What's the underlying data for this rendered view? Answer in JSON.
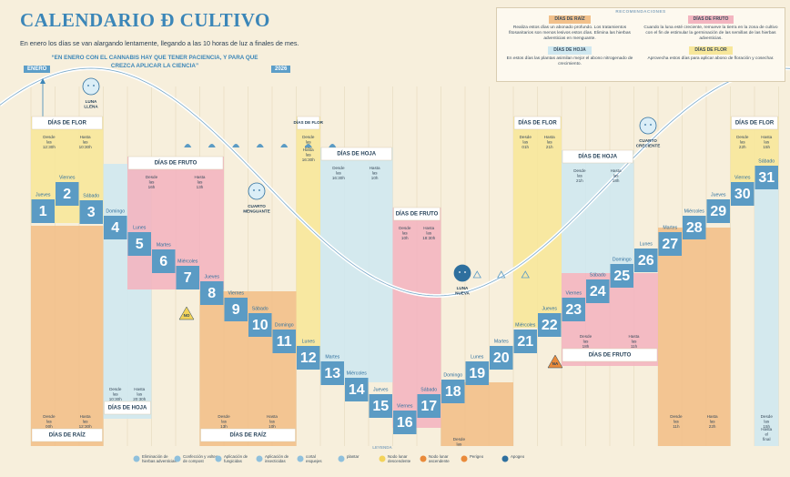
{
  "header": {
    "title": "CALENDARIO Ð CULTIVO",
    "subtitle": "En enero los días se van alargando lentamente, llegando a las 10 horas de luz a finales de mes.",
    "quote": "“EN ENERO CON EL CANNABIS HAY QUE TENER PACIENCIA, Y PARA QUE CREZCA APLICAR LA CIENCIA”",
    "month": "ENERO",
    "year": "2026"
  },
  "recommendations": {
    "title": "RECOMENDACIONES",
    "items": [
      {
        "label": "DÍAS DE RAÍZ",
        "text": "Realiza estos días un abonado profundo. Los tratamientos fitosanitarios son menos lesivos estos días. Elimina las hierbas adventicias en menguante."
      },
      {
        "label": "DÍAS DE FRUTO",
        "text": "Cuando la luna esté creciente, remueve la tierra en la zona de cultivo con el fin de estimular la germinación de las semillas de las hierbas adventicias."
      },
      {
        "label": "DÍAS DE HOJA",
        "text": "En estos días las plantas asimilan mejor el abono nitrogenado de crecimiento."
      },
      {
        "label": "DÍAS DE FLOR",
        "text": "Aprovecha estos días para aplicar abono de floración y cosechar."
      }
    ]
  },
  "days": [
    {
      "number": 1,
      "weekday": "Jueves"
    },
    {
      "number": 2,
      "weekday": "Viernes"
    },
    {
      "number": 3,
      "weekday": "Sábado"
    },
    {
      "number": 4,
      "weekday": "Domingo"
    },
    {
      "number": 5,
      "weekday": "Lunes"
    },
    {
      "number": 6,
      "weekday": "Martes"
    },
    {
      "number": 7,
      "weekday": "Miércoles"
    },
    {
      "number": 8,
      "weekday": "Jueves"
    },
    {
      "number": 9,
      "weekday": "Viernes"
    },
    {
      "number": 10,
      "weekday": "Sábado"
    },
    {
      "number": 11,
      "weekday": "Domingo"
    },
    {
      "number": 12,
      "weekday": "Lunes"
    },
    {
      "number": 13,
      "weekday": "Martes"
    },
    {
      "number": 14,
      "weekday": "Miércoles"
    },
    {
      "number": 15,
      "weekday": "Jueves"
    },
    {
      "number": 16,
      "weekday": "Viernes"
    },
    {
      "number": 17,
      "weekday": "Sábado"
    },
    {
      "number": 18,
      "weekday": "Domingo"
    },
    {
      "number": 19,
      "weekday": "Lunes"
    },
    {
      "number": 20,
      "weekday": "Martes"
    },
    {
      "number": 21,
      "weekday": "Miércoles"
    },
    {
      "number": 22,
      "weekday": "Jueves"
    },
    {
      "number": 23,
      "weekday": "Viernes"
    },
    {
      "number": 24,
      "weekday": "Sábado"
    },
    {
      "number": 25,
      "weekday": "Domingo"
    },
    {
      "number": 26,
      "weekday": "Lunes"
    },
    {
      "number": 27,
      "weekday": "Martes"
    },
    {
      "number": 28,
      "weekday": "Miércoles"
    },
    {
      "number": 29,
      "weekday": "Jueves"
    },
    {
      "number": 30,
      "weekday": "Viernes"
    },
    {
      "number": 31,
      "weekday": "Sábado"
    }
  ],
  "periods": [
    {
      "name": "DÍAS DE FLOR",
      "from": "Desde las 12:30h",
      "to": "Hasta las 10:30h"
    },
    {
      "name": "DÍAS DE RAÍZ",
      "from": "Desde las 00h",
      "to": "Hasta las 12:30h"
    },
    {
      "name": "DÍAS DE HOJA",
      "from": "Desde las 10:30h",
      "to": "Hasta las 20:30h"
    },
    {
      "name": "DÍAS DE FRUTO",
      "from": "Desde las 16h",
      "to": "Hasta las 13h"
    },
    {
      "name": "DÍAS DE RAÍZ",
      "from": "Desde las 13h",
      "to": "Hasta las 10h"
    },
    {
      "name": "DÍAS DE FLOR",
      "from": "Desde las 01h",
      "to": "Hasta las 16:30h"
    },
    {
      "name": "DÍAS DE HOJA",
      "from": "Desde las 16:30h",
      "to": "Hasta las 10h"
    },
    {
      "name": "DÍAS DE FRUTO",
      "from": "Desde las 10h",
      "to": "Hasta las 18:30h"
    },
    {
      "name": "DÍAS DE RAÍZ",
      "from": "Desde las 18:30h"
    },
    {
      "name": "DÍAS DE FLOR",
      "from": "Desde las 01h",
      "to": "Hasta las 21h"
    },
    {
      "name": "DÍAS DE HOJA",
      "from": "Desde las 21h",
      "to": "Hasta las 18h"
    },
    {
      "name": "DÍAS DE FRUTO",
      "from": "Desde las 18h",
      "to": "Hasta las 11h"
    },
    {
      "from": "Desde las 11h",
      "to": "Hasta las 22h"
    },
    {
      "name": "DÍAS DE FLOR",
      "from": "Desde las 22h",
      "to": "Hasta las 15h"
    },
    {
      "from": "Desde las 15h",
      "to": "Hasta el final"
    }
  ],
  "moons": [
    {
      "label": "LUNA LLENA"
    },
    {
      "label": "CUARTO MENGUANTE"
    },
    {
      "label": "LUNA NUEVA"
    },
    {
      "label": "CUARTO CRECIENTE"
    }
  ],
  "markers": [
    {
      "label": "NO"
    },
    {
      "label": "NA"
    }
  ],
  "legend": {
    "title": "LEYENDA",
    "items": [
      "Eliminación de hierbas adventicias",
      "Confección y volteo de compost",
      "Aplicación de fungicidas",
      "Aplicación de insecticidas",
      "cortal esquejes",
      "plantar",
      "Nodo lunar descendente",
      "Nodo lunar ascendente",
      "Perigeo",
      "Apogeo"
    ]
  }
}
